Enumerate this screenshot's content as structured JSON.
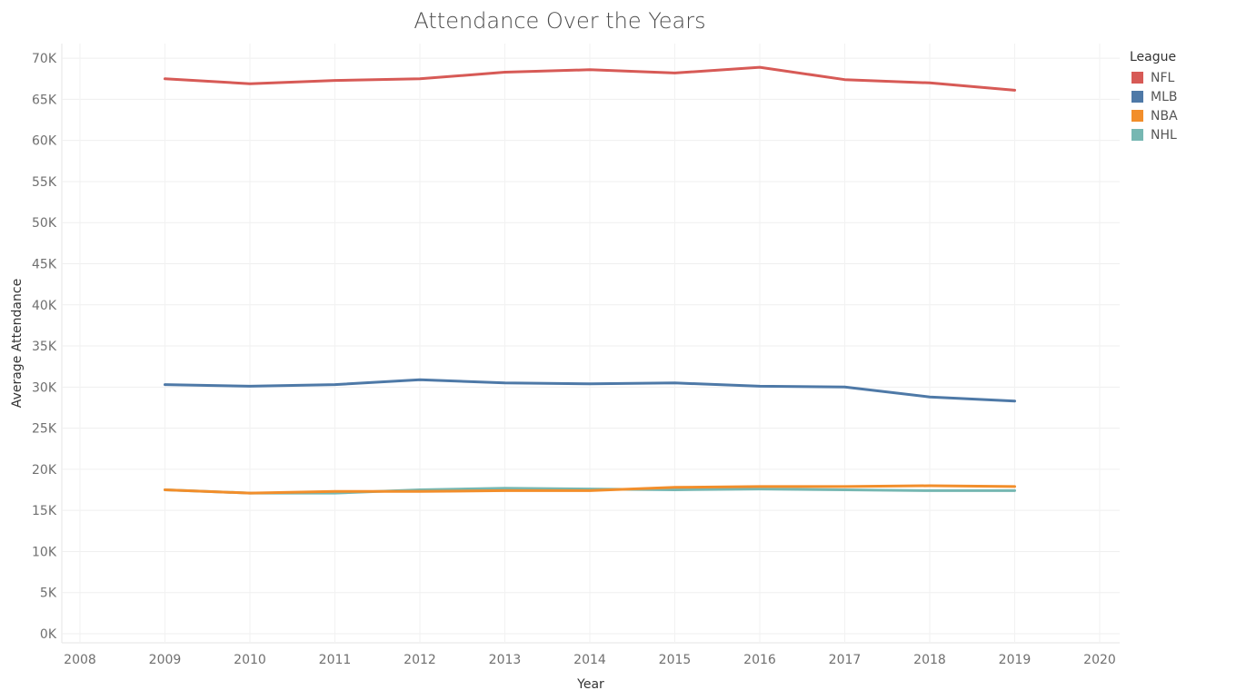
{
  "chart_data": {
    "type": "line",
    "title": "Attendance Over the Years",
    "xlabel": "Year",
    "ylabel": "Average Attendance",
    "x": [
      2009,
      2010,
      2011,
      2012,
      2013,
      2014,
      2015,
      2016,
      2017,
      2018,
      2019
    ],
    "xlim": [
      2008,
      2020
    ],
    "x_ticks": [
      "2008",
      "2009",
      "2010",
      "2011",
      "2012",
      "2013",
      "2014",
      "2015",
      "2016",
      "2017",
      "2018",
      "2019",
      "2020"
    ],
    "ylim": [
      0,
      72000
    ],
    "y_ticks": [
      0,
      5000,
      10000,
      15000,
      20000,
      25000,
      30000,
      35000,
      40000,
      45000,
      50000,
      55000,
      60000,
      65000,
      70000
    ],
    "y_tick_labels": [
      "0K",
      "5K",
      "10K",
      "15K",
      "20K",
      "25K",
      "30K",
      "35K",
      "40K",
      "45K",
      "50K",
      "55K",
      "60K",
      "65K",
      "70K"
    ],
    "grid": true,
    "legend_title": "League",
    "legend_position": "top-right",
    "series": [
      {
        "name": "NFL",
        "color": "#d75a56",
        "values": [
          67500,
          66900,
          67300,
          67500,
          68300,
          68600,
          68200,
          68900,
          67400,
          67000,
          66100
        ]
      },
      {
        "name": "MLB",
        "color": "#4e79a7",
        "values": [
          30300,
          30100,
          30300,
          30900,
          30500,
          30400,
          30500,
          30100,
          30000,
          28800,
          28300
        ]
      },
      {
        "name": "NBA",
        "color": "#f28e2b",
        "values": [
          17500,
          17100,
          17300,
          17300,
          17400,
          17400,
          17800,
          17900,
          17900,
          18000,
          17900
        ]
      },
      {
        "name": "NHL",
        "color": "#76b7b2",
        "values": [
          17500,
          17100,
          17100,
          17500,
          17700,
          17600,
          17500,
          17600,
          17500,
          17400,
          17400
        ]
      }
    ]
  }
}
